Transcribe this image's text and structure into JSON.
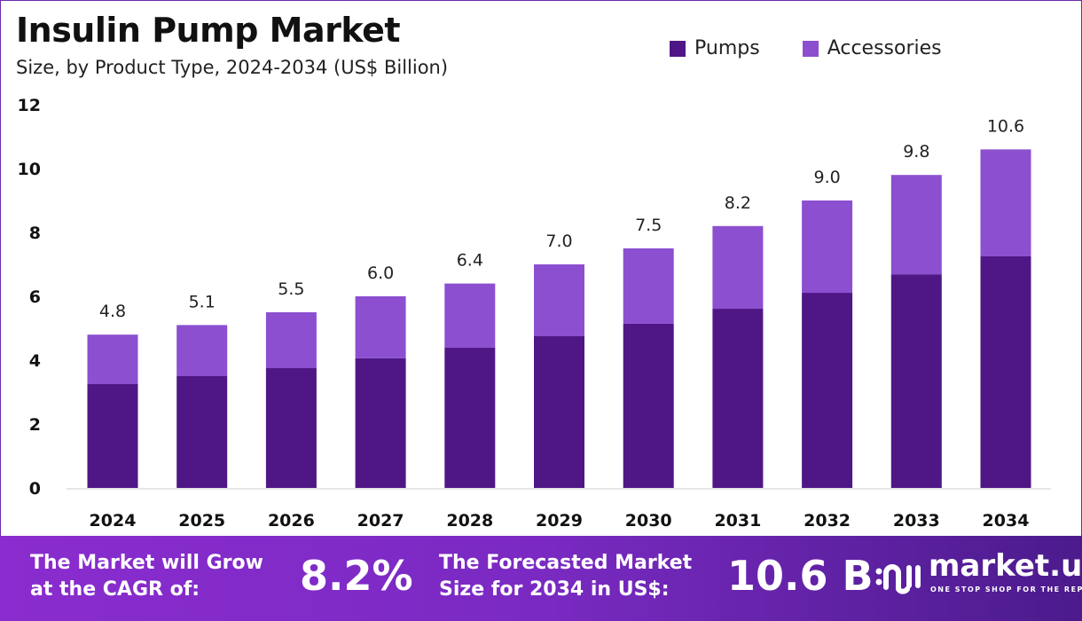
{
  "title": "Insulin Pump Market",
  "subtitle": "Size, by Product Type, 2024-2034 (US$ Billion)",
  "colors": {
    "pumps": "#4f1785",
    "accessories": "#8b4fd0"
  },
  "chart_data": {
    "type": "bar",
    "stacked": true,
    "categories": [
      "2024",
      "2025",
      "2026",
      "2027",
      "2028",
      "2029",
      "2030",
      "2031",
      "2032",
      "2033",
      "2034"
    ],
    "series": [
      {
        "name": "Pumps",
        "values": [
          3.25,
          3.5,
          3.75,
          4.06,
          4.39,
          4.75,
          5.14,
          5.61,
          6.11,
          6.69,
          7.25
        ]
      },
      {
        "name": "Accessories",
        "values": [
          1.55,
          1.6,
          1.75,
          1.94,
          2.01,
          2.25,
          2.36,
          2.59,
          2.89,
          3.11,
          3.35
        ]
      }
    ],
    "totals_labels": [
      "4.8",
      "5.1",
      "5.5",
      "6.0",
      "6.4",
      "7.0",
      "7.5",
      "8.2",
      "9.0",
      "9.8",
      "10.6"
    ],
    "yticks": [
      "0",
      "2",
      "4",
      "6",
      "8",
      "10",
      "12"
    ],
    "ylim": [
      0,
      12
    ],
    "grid": false,
    "legend": "top-right"
  },
  "footer": {
    "cagr_text": "The Market will Grow at the CAGR of:",
    "cagr_value": "8.2%",
    "forecast_text": "The Forecasted Market Size for 2034 in US$:",
    "forecast_value": "10.6 B",
    "logo_name": "market.us",
    "logo_tagline": "ONE STOP SHOP FOR THE REPORTS"
  }
}
